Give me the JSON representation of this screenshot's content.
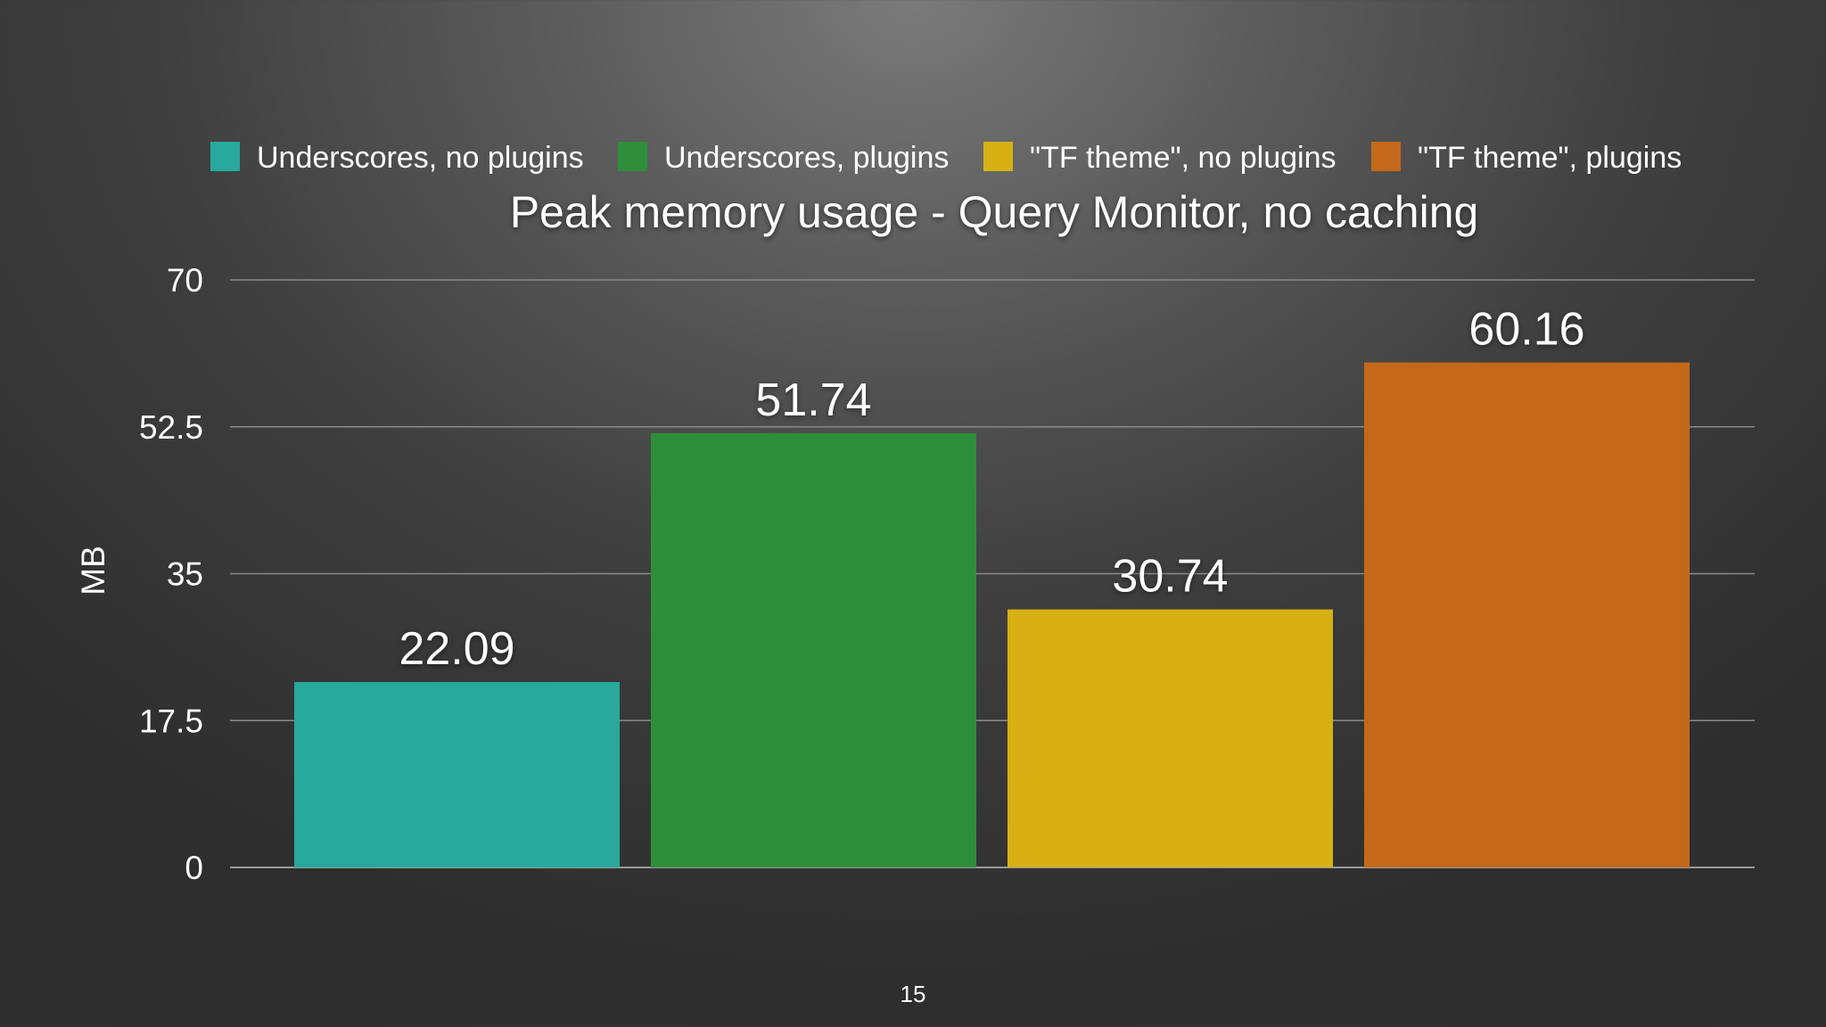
{
  "slide": {
    "page_number": "15"
  },
  "chart_data": {
    "type": "bar",
    "title": "Peak memory usage - Query Monitor, no caching",
    "xlabel": "",
    "ylabel": "MB",
    "ylim": [
      0,
      70
    ],
    "yticks": [
      0,
      17.5,
      35,
      52.5,
      70
    ],
    "ytick_labels": [
      "0",
      "17.5",
      "35",
      "52.5",
      "70"
    ],
    "grid": true,
    "legend_position": "top",
    "series": [
      {
        "name": "Underscores, no plugins",
        "value": 22.09,
        "label": "22.09",
        "color": "#28a99d"
      },
      {
        "name": "Underscores, plugins",
        "value": 51.74,
        "label": "51.74",
        "color": "#2f8e3b"
      },
      {
        "name": "\"TF theme\", no plugins",
        "value": 30.74,
        "label": "30.74",
        "color": "#d7b114"
      },
      {
        "name": "\"TF theme\", plugins",
        "value": 60.16,
        "label": "60.16",
        "color": "#c4691a"
      }
    ]
  }
}
